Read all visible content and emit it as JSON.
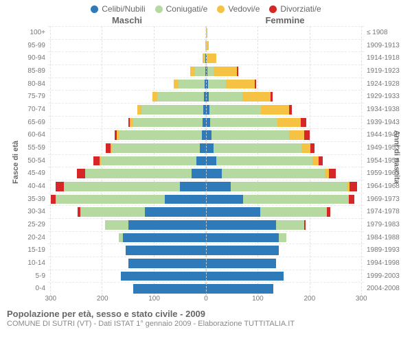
{
  "legend": [
    {
      "label": "Celibi/Nubili",
      "color": "#2f7ab9"
    },
    {
      "label": "Coniugati/e",
      "color": "#b6d8a1"
    },
    {
      "label": "Vedovi/e",
      "color": "#f6c244"
    },
    {
      "label": "Divorziati/e",
      "color": "#d62728"
    }
  ],
  "headers": {
    "left": "Maschi",
    "right": "Femmine"
  },
  "y_left_title": "Fasce di età",
  "y_right_title": "Anni di nascita",
  "x_ticks": [
    300,
    200,
    100,
    0
  ],
  "x_max": 305,
  "title": "Popolazione per età, sesso e stato civile - 2009",
  "subtitle": "COMUNE DI SUTRI (VT) - Dati ISTAT 1° gennaio 2009 - Elaborazione TUTTITALIA.IT",
  "colors": {
    "celibi": "#2f7ab9",
    "coniugati": "#b6d8a1",
    "vedovi": "#f6c244",
    "divorziati": "#d62728",
    "grid": "#e0e0e0",
    "text": "#666666",
    "bg": "#ffffff"
  },
  "age_groups": [
    {
      "age": "100+",
      "birth": "≤ 1908",
      "m": [
        0,
        0,
        0,
        0
      ],
      "f": [
        0,
        0,
        2,
        0
      ]
    },
    {
      "age": "95-99",
      "birth": "1909-1913",
      "m": [
        0,
        0,
        2,
        0
      ],
      "f": [
        0,
        0,
        5,
        0
      ]
    },
    {
      "age": "90-94",
      "birth": "1914-1918",
      "m": [
        1,
        2,
        4,
        0
      ],
      "f": [
        1,
        2,
        17,
        0
      ]
    },
    {
      "age": "85-89",
      "birth": "1919-1923",
      "m": [
        2,
        19,
        9,
        0
      ],
      "f": [
        3,
        12,
        45,
        2
      ]
    },
    {
      "age": "80-84",
      "birth": "1924-1928",
      "m": [
        3,
        50,
        10,
        0
      ],
      "f": [
        4,
        35,
        55,
        3
      ]
    },
    {
      "age": "75-79",
      "birth": "1929-1933",
      "m": [
        4,
        90,
        10,
        0
      ],
      "f": [
        5,
        65,
        55,
        3
      ]
    },
    {
      "age": "70-74",
      "birth": "1934-1938",
      "m": [
        5,
        120,
        8,
        0
      ],
      "f": [
        6,
        100,
        55,
        5
      ]
    },
    {
      "age": "65-69",
      "birth": "1939-1943",
      "m": [
        6,
        135,
        6,
        3
      ],
      "f": [
        8,
        130,
        45,
        10
      ]
    },
    {
      "age": "60-64",
      "birth": "1944-1948",
      "m": [
        8,
        160,
        4,
        5
      ],
      "f": [
        10,
        150,
        30,
        10
      ]
    },
    {
      "age": "55-59",
      "birth": "1949-1953",
      "m": [
        12,
        170,
        3,
        8
      ],
      "f": [
        14,
        170,
        18,
        8
      ]
    },
    {
      "age": "50-54",
      "birth": "1954-1958",
      "m": [
        18,
        185,
        2,
        12
      ],
      "f": [
        20,
        185,
        12,
        8
      ]
    },
    {
      "age": "45-49",
      "birth": "1959-1963",
      "m": [
        28,
        205,
        1,
        15
      ],
      "f": [
        30,
        200,
        8,
        12
      ]
    },
    {
      "age": "40-44",
      "birth": "1964-1968",
      "m": [
        50,
        225,
        0,
        15
      ],
      "f": [
        48,
        225,
        4,
        15
      ]
    },
    {
      "age": "35-39",
      "birth": "1969-1973",
      "m": [
        80,
        210,
        0,
        10
      ],
      "f": [
        72,
        202,
        2,
        10
      ]
    },
    {
      "age": "30-34",
      "birth": "1974-1978",
      "m": [
        118,
        125,
        0,
        5
      ],
      "f": [
        105,
        128,
        1,
        6
      ]
    },
    {
      "age": "25-29",
      "birth": "1979-1983",
      "m": [
        150,
        45,
        0,
        0
      ],
      "f": [
        135,
        55,
        0,
        2
      ]
    },
    {
      "age": "20-24",
      "birth": "1984-1988",
      "m": [
        160,
        8,
        0,
        0
      ],
      "f": [
        140,
        15,
        0,
        0
      ]
    },
    {
      "age": "15-19",
      "birth": "1989-1993",
      "m": [
        155,
        0,
        0,
        0
      ],
      "f": [
        140,
        0,
        0,
        0
      ]
    },
    {
      "age": "10-14",
      "birth": "1994-1998",
      "m": [
        150,
        0,
        0,
        0
      ],
      "f": [
        135,
        0,
        0,
        0
      ]
    },
    {
      "age": "5-9",
      "birth": "1999-2003",
      "m": [
        165,
        0,
        0,
        0
      ],
      "f": [
        150,
        0,
        0,
        0
      ]
    },
    {
      "age": "0-4",
      "birth": "2004-2008",
      "m": [
        140,
        0,
        0,
        0
      ],
      "f": [
        130,
        0,
        0,
        0
      ]
    }
  ]
}
